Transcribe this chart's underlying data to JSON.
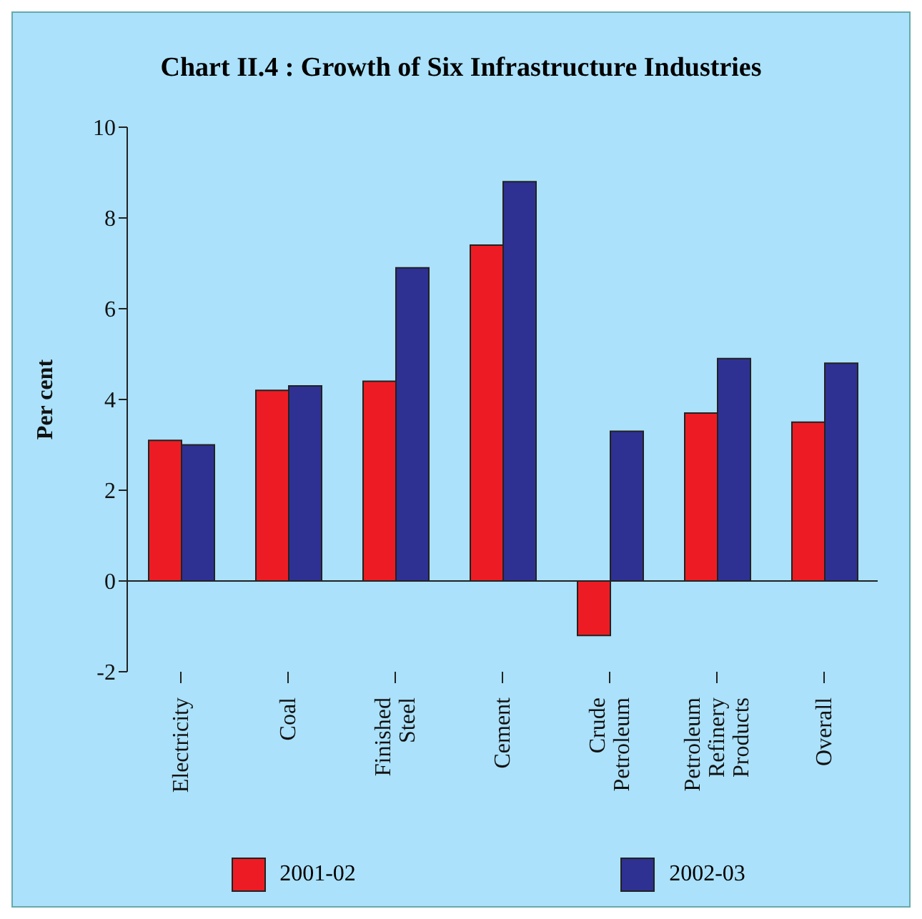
{
  "chart_data": {
    "type": "bar",
    "title": "Chart II.4 : Growth of Six Infrastructure Industries",
    "ylabel": "Per cent",
    "categories": [
      "Electricity",
      "Coal",
      "Finished Steel",
      "Cement",
      "Crude Petroleum",
      "Petroleum Refinery Products",
      "Overall"
    ],
    "series": [
      {
        "name": "2001-02",
        "color": "#ed1c24",
        "values": [
          3.1,
          4.2,
          4.4,
          7.4,
          -1.2,
          3.7,
          3.5
        ]
      },
      {
        "name": "2002-03",
        "color": "#2e3192",
        "values": [
          3.0,
          4.3,
          6.9,
          8.8,
          3.3,
          4.9,
          4.8
        ]
      }
    ],
    "ylim": [
      -2,
      10
    ],
    "yticks": [
      -2,
      0,
      2,
      4,
      6,
      8,
      10
    ],
    "legend": "bottom"
  }
}
